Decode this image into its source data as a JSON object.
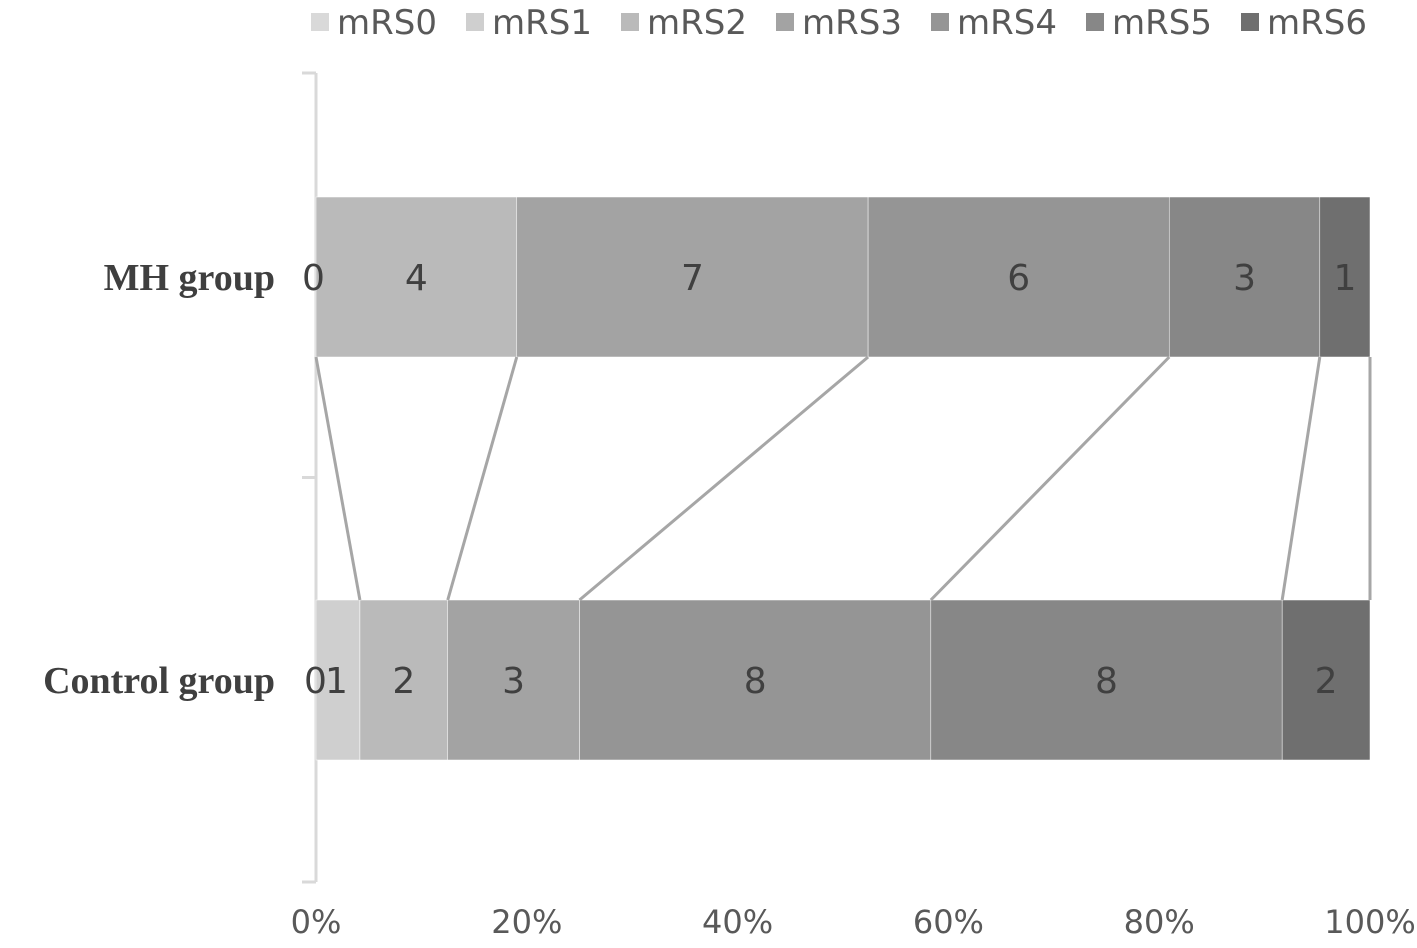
{
  "chart_data": {
    "type": "bar",
    "orientation": "horizontal",
    "stacked": "percent",
    "categories": [
      "MH group",
      "Control group"
    ],
    "series": [
      {
        "name": "mRS0",
        "values": [
          0,
          0
        ],
        "labels": [
          "0",
          "0"
        ],
        "color": "#d9d9d9"
      },
      {
        "name": "mRS1",
        "values": [
          0,
          1
        ],
        "labels": [
          "",
          "1"
        ],
        "color": "#cfcfcf"
      },
      {
        "name": "mRS2",
        "values": [
          4,
          2
        ],
        "labels": [
          "4",
          "2"
        ],
        "color": "#bababa"
      },
      {
        "name": "mRS3",
        "values": [
          7,
          3
        ],
        "labels": [
          "7",
          "3"
        ],
        "color": "#a3a3a3"
      },
      {
        "name": "mRS4",
        "values": [
          6,
          8
        ],
        "labels": [
          "6",
          "8"
        ],
        "color": "#959595"
      },
      {
        "name": "mRS5",
        "values": [
          3,
          8
        ],
        "labels": [
          "3",
          "8"
        ],
        "color": "#878787"
      },
      {
        "name": "mRS6",
        "values": [
          1,
          2
        ],
        "labels": [
          "1",
          "2"
        ],
        "color": "#6f6f6f"
      }
    ],
    "x_ticks": [
      "0%",
      "20%",
      "40%",
      "60%",
      "80%",
      "100%"
    ],
    "xlim": [
      0,
      100
    ],
    "legend": "top",
    "series_lines": true,
    "grid": false,
    "title": "",
    "xlabel": "",
    "ylabel": ""
  }
}
